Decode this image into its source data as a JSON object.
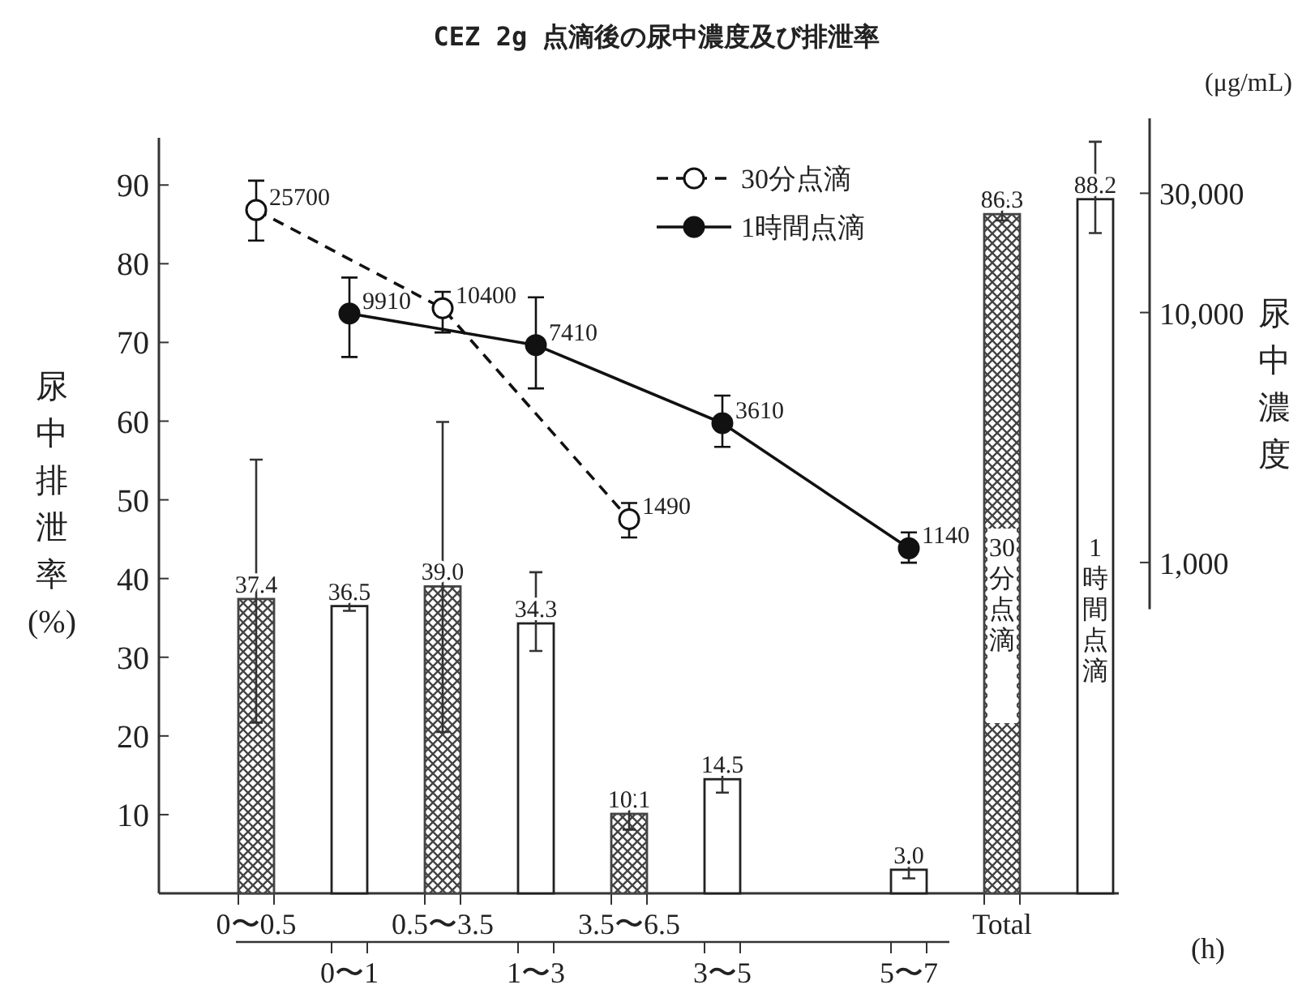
{
  "chart_data": {
    "type": "bar",
    "title": "CEZ 2g 点滴後の尿中濃度及び排泄率",
    "categories": [
      "0〜0.5",
      "0〜1",
      "0.5〜3.5",
      "1〜3",
      "3.5〜6.5",
      "3〜5",
      null,
      "5〜7",
      "Total",
      null
    ],
    "series": [
      {
        "color": "#444444",
        "values": [
          37.4,
          null,
          39.0,
          null,
          10.1,
          null,
          null,
          null,
          86.3,
          null
        ],
        "errors": [
          [
            21.7,
            55.1
          ],
          null,
          [
            20.5,
            59.9
          ],
          null,
          [
            8.1,
            12.5
          ],
          null,
          null,
          null,
          [
            85.5,
            88.0
          ],
          null
        ],
        "value_labels": [
          "37.4",
          null,
          "39.0",
          null,
          "10.1",
          null,
          null,
          null,
          "86.3",
          null
        ]
      },
      {
        "color": "#222222",
        "values": [
          null,
          36.5,
          null,
          34.3,
          null,
          14.5,
          null,
          3.0,
          null,
          88.2
        ],
        "errors": [
          null,
          [
            35.9,
            37.9
          ],
          null,
          [
            30.8,
            40.8
          ],
          null,
          [
            12.8,
            15.6
          ],
          null,
          [
            1.9,
            4.2
          ],
          null,
          [
            83.9,
            95.5
          ]
        ],
        "value_labels": [
          null,
          "36.5",
          null,
          "34.3",
          null,
          "14.5",
          null,
          "3.0",
          null,
          "88.2"
        ]
      },
      {
        "type": "line",
        "axis": "y2",
        "name": "30分点滴",
        "color": "#111111",
        "marker": "circle",
        "line_style": "dashed",
        "x": [
          "0〜0.5",
          "0.5〜3.5",
          "3.5〜6.5"
        ],
        "values": [
          25700,
          10400,
          1490
        ],
        "errors": [
          [
            19400,
            33700
          ],
          [
            8320,
            12100
          ],
          [
            1260,
            1730
          ]
        ],
        "value_labels": [
          "25700",
          "10400",
          "1490"
        ]
      },
      {
        "type": "line",
        "axis": "y2",
        "name": "1時間点滴",
        "color": "#111111",
        "marker": "circle",
        "line_style": "solid",
        "x": [
          "0〜1",
          "1〜3",
          "3〜5",
          "5〜7"
        ],
        "values": [
          9910,
          7410,
          3610,
          1140
        ],
        "errors": [
          [
            6640,
            13800
          ],
          [
            4970,
            11500
          ],
          [
            2900,
            4650
          ],
          [
            998,
            1320
          ]
        ],
        "value_labels": [
          "9910",
          "7410",
          "3610",
          "1140"
        ]
      }
    ],
    "ylim": [
      0,
      96
    ],
    "yticks": [
      10,
      20,
      30,
      40,
      50,
      60,
      70,
      80,
      90
    ],
    "y2lim": [
      650,
      50000
    ],
    "y2ticks": [
      {
        "value": 1000,
        "label": "1,000"
      },
      {
        "value": 10000,
        "label": "10,000"
      },
      {
        "value": 30000,
        "label": "30,000"
      }
    ],
    "log": "y2",
    "ylabel": "尿中排泄率(%)",
    "y2label": "尿中濃度",
    "xlabel": "(h)",
    "annotations": [
      "(μg/mL)",
      "30分点滴",
      "1時間点滴"
    ],
    "legend": "top"
  }
}
